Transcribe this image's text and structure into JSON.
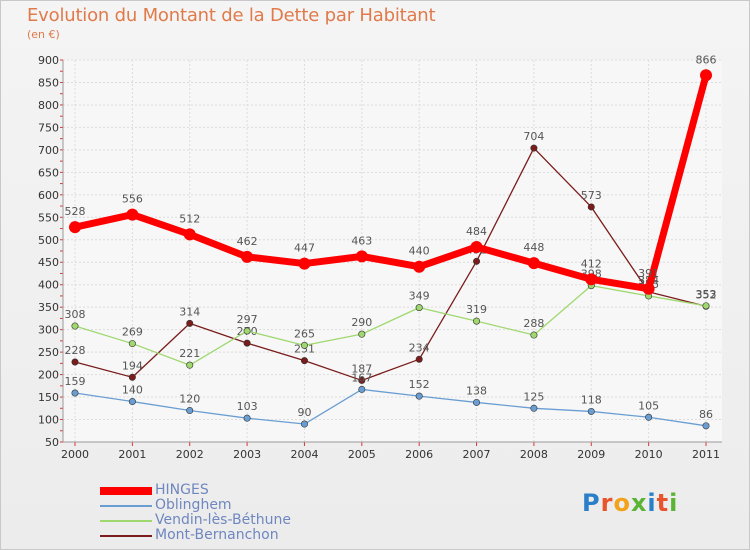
{
  "header": {
    "title": "Evolution du Montant de la Dette par Habitant",
    "unit": "(en €)"
  },
  "logo": {
    "text": "Proxiti",
    "letter_colors": [
      "#2a7fc9",
      "#e9552b",
      "#f2a31b",
      "#5bb435",
      "#2a7fc9",
      "#e9552b",
      "#5bb435"
    ]
  },
  "chart_data": {
    "type": "line",
    "title": "Evolution du Montant de la Dette par Habitant",
    "subtitle": "(en €)",
    "xlabel": "",
    "ylabel": "",
    "x": [
      "2000",
      "2001",
      "2002",
      "2003",
      "2004",
      "2005",
      "2006",
      "2007",
      "2008",
      "2009",
      "2010",
      "2011"
    ],
    "ylim": [
      50,
      900
    ],
    "yticks": [
      50,
      100,
      150,
      200,
      250,
      300,
      350,
      400,
      450,
      500,
      550,
      600,
      650,
      700,
      750,
      800,
      850,
      900
    ],
    "grid": true,
    "legend_position": "bottom-left",
    "series": [
      {
        "name": "Mont-Bernanchon",
        "color": "#7a1c1c",
        "values": [
          228,
          194,
          314,
          270,
          231,
          187,
          234,
          452,
          704,
          573,
          384,
          352
        ],
        "labels": [
          "228",
          "194",
          "314",
          "270",
          "231",
          "187",
          "234",
          "452",
          "704",
          "573",
          "384",
          "352"
        ]
      },
      {
        "name": "Vendin-lès-Béthune",
        "color": "#9fd86f",
        "values": [
          308,
          269,
          221,
          297,
          265,
          290,
          349,
          319,
          288,
          398,
          375,
          353
        ],
        "labels": [
          "308",
          "269",
          "221",
          "297",
          "265",
          "290",
          "349",
          "319",
          "288",
          "398",
          "375",
          "353"
        ]
      },
      {
        "name": "Oblinghem",
        "color": "#6a9ed3",
        "values": [
          159,
          140,
          120,
          103,
          90,
          167,
          152,
          138,
          125,
          118,
          105,
          86
        ],
        "labels": [
          "159",
          "140",
          "120",
          "103",
          "90",
          "167",
          "152",
          "138",
          "125",
          "118",
          "105",
          "86"
        ]
      },
      {
        "name": "HINGES",
        "color": "#ff0000",
        "values": [
          528,
          556,
          512,
          462,
          447,
          463,
          440,
          484,
          448,
          412,
          391,
          866
        ],
        "labels": [
          "528",
          "556",
          "512",
          "462",
          "447",
          "463",
          "440",
          "484",
          "448",
          "412",
          "391",
          "866"
        ]
      }
    ],
    "legend": [
      "HINGES",
      "Oblinghem",
      "Vendin-lès-Béthune",
      "Mont-Bernanchon"
    ]
  }
}
